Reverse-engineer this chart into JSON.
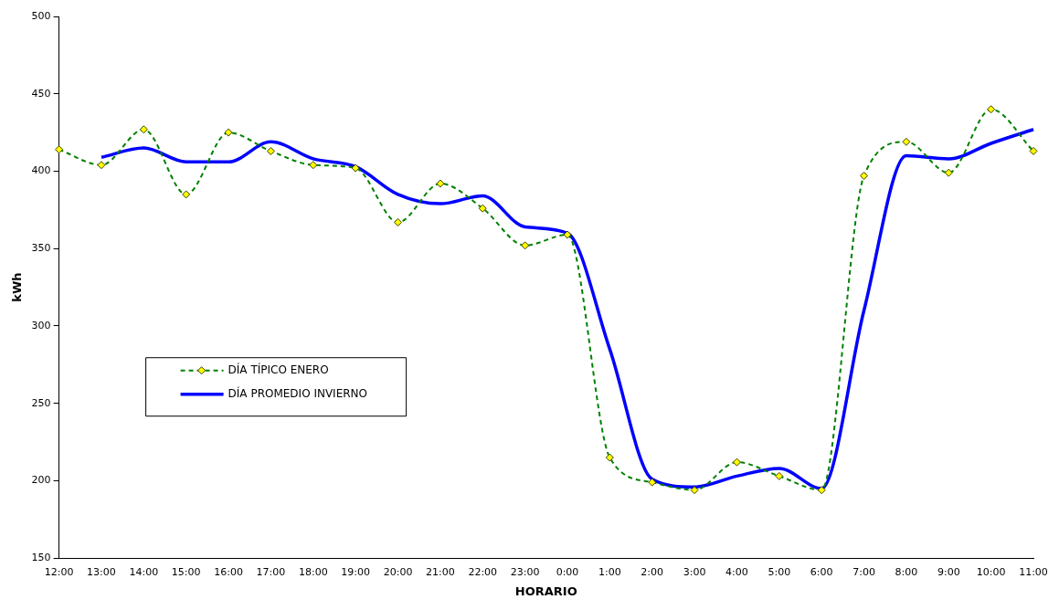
{
  "chart_data": {
    "type": "line",
    "xlabel": "HORARIO",
    "ylabel": "kWh",
    "categories": [
      "12:00",
      "13:00",
      "14:00",
      "15:00",
      "16:00",
      "17:00",
      "18:00",
      "19:00",
      "20:00",
      "21:00",
      "22:00",
      "23:00",
      "0:00",
      "1:00",
      "2:00",
      "3:00",
      "4:00",
      "5:00",
      "6:00",
      "7:00",
      "8:00",
      "9:00",
      "10:00",
      "11:00"
    ],
    "series": [
      {
        "name": "DÍA TÍPICO ENERO",
        "color": "#008000",
        "line_style": "dashed",
        "marker": "diamond",
        "values": [
          414,
          404,
          427,
          385,
          425,
          413,
          404,
          402,
          367,
          392,
          376,
          352,
          359,
          215,
          199,
          194,
          212,
          203,
          194,
          397,
          419,
          399,
          440,
          413
        ]
      },
      {
        "name": "DÍA PROMEDIO INVIERNO",
        "color": "#0000ff",
        "line_style": "solid",
        "marker": "none",
        "values": [
          null,
          409,
          415,
          406,
          406,
          419,
          408,
          403,
          385,
          379,
          384,
          364,
          360,
          285,
          201,
          196,
          203,
          208,
          195,
          310,
          410,
          408,
          418,
          427
        ]
      }
    ],
    "ylim": [
      150,
      500
    ],
    "yticks": [
      150,
      200,
      250,
      300,
      350,
      400,
      450,
      500
    ],
    "grid": false,
    "legend": "left"
  }
}
